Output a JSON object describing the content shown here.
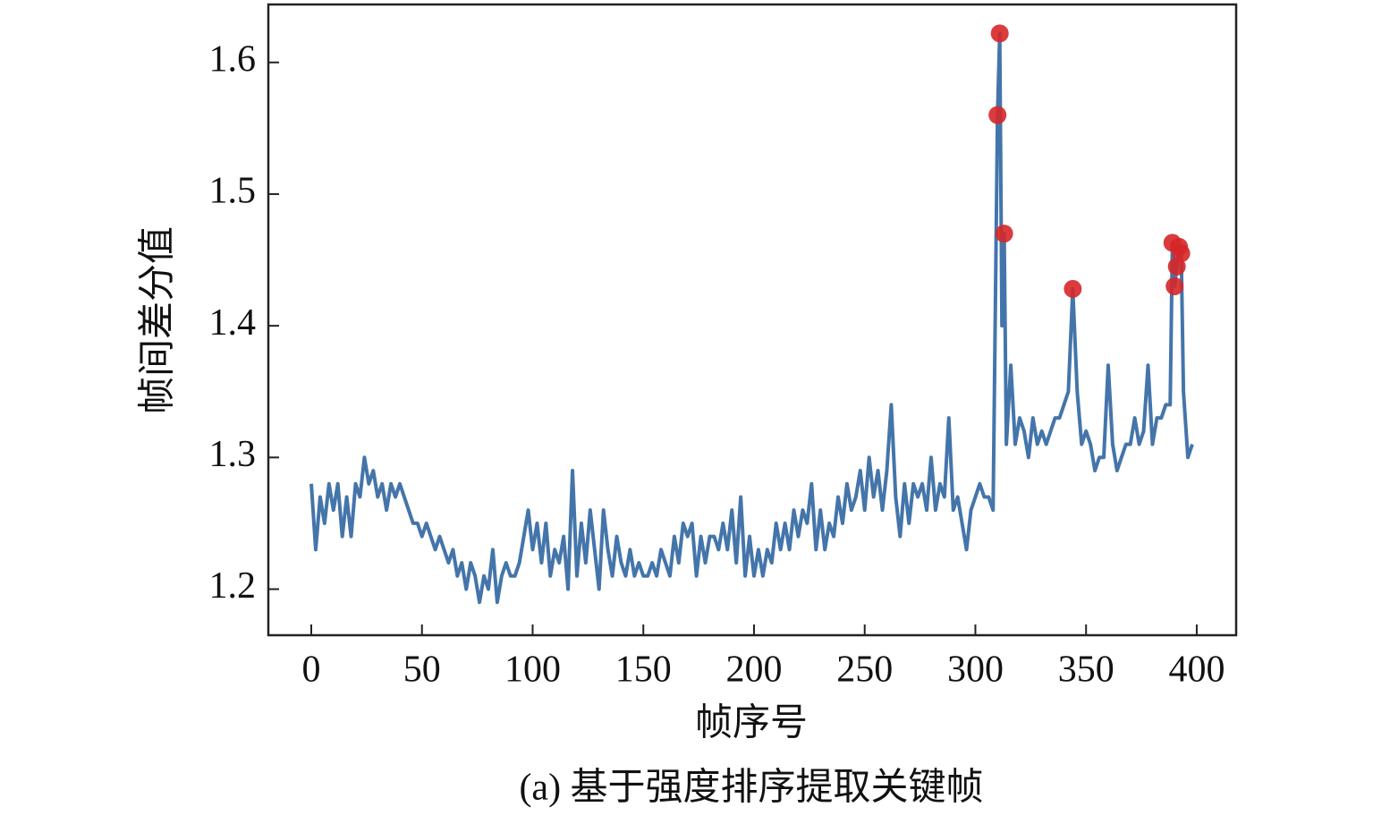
{
  "chart_data": {
    "type": "line",
    "title": "(a) 基于强度排序提取关键帧",
    "x_label": "帧序号",
    "y_label": "帧间差分值",
    "xlim": [
      -19.4,
      417.8
    ],
    "ylim": [
      1.165,
      1.644
    ],
    "xticks": [
      0,
      50,
      100,
      150,
      200,
      250,
      300,
      350,
      400
    ],
    "yticks": [
      1.2,
      1.3,
      1.4,
      1.5,
      1.6
    ],
    "grid": false,
    "series": [
      {
        "type": "line",
        "color": "#3a6ea5",
        "x": [
          0,
          2,
          4,
          6,
          8,
          10,
          12,
          14,
          16,
          18,
          20,
          22,
          24,
          26,
          28,
          30,
          32,
          34,
          36,
          38,
          40,
          42,
          44,
          46,
          48,
          50,
          52,
          54,
          56,
          58,
          60,
          62,
          64,
          66,
          68,
          70,
          72,
          74,
          76,
          78,
          80,
          82,
          84,
          86,
          88,
          90,
          92,
          94,
          96,
          98,
          100,
          102,
          104,
          106,
          108,
          110,
          112,
          114,
          116,
          118,
          120,
          122,
          124,
          126,
          128,
          130,
          132,
          134,
          136,
          138,
          140,
          142,
          144,
          146,
          148,
          150,
          152,
          154,
          156,
          158,
          160,
          162,
          164,
          166,
          168,
          170,
          172,
          174,
          176,
          178,
          180,
          182,
          184,
          186,
          188,
          190,
          192,
          194,
          196,
          198,
          200,
          202,
          204,
          206,
          208,
          210,
          212,
          214,
          216,
          218,
          220,
          222,
          224,
          226,
          228,
          230,
          232,
          234,
          236,
          238,
          240,
          242,
          244,
          246,
          248,
          250,
          252,
          254,
          256,
          258,
          260,
          262,
          264,
          266,
          268,
          270,
          272,
          274,
          276,
          278,
          280,
          282,
          284,
          286,
          288,
          290,
          292,
          294,
          296,
          298,
          300,
          302,
          304,
          306,
          308,
          310,
          311,
          312,
          313,
          314,
          316,
          318,
          320,
          322,
          324,
          326,
          328,
          330,
          332,
          334,
          336,
          338,
          340,
          342,
          344,
          346,
          348,
          350,
          352,
          354,
          356,
          358,
          360,
          362,
          364,
          366,
          368,
          370,
          372,
          374,
          376,
          378,
          380,
          382,
          384,
          386,
          388,
          389,
          390,
          391,
          392,
          393,
          394,
          396,
          398
        ],
        "values": [
          1.28,
          1.23,
          1.27,
          1.25,
          1.28,
          1.26,
          1.28,
          1.24,
          1.27,
          1.24,
          1.28,
          1.27,
          1.3,
          1.28,
          1.29,
          1.27,
          1.28,
          1.26,
          1.28,
          1.27,
          1.28,
          1.27,
          1.26,
          1.25,
          1.25,
          1.24,
          1.25,
          1.24,
          1.23,
          1.24,
          1.23,
          1.22,
          1.23,
          1.21,
          1.22,
          1.2,
          1.22,
          1.21,
          1.19,
          1.21,
          1.2,
          1.23,
          1.19,
          1.21,
          1.22,
          1.21,
          1.21,
          1.22,
          1.24,
          1.26,
          1.23,
          1.25,
          1.22,
          1.25,
          1.21,
          1.23,
          1.22,
          1.24,
          1.2,
          1.29,
          1.21,
          1.25,
          1.22,
          1.26,
          1.23,
          1.2,
          1.26,
          1.23,
          1.21,
          1.24,
          1.22,
          1.21,
          1.23,
          1.21,
          1.22,
          1.21,
          1.21,
          1.22,
          1.21,
          1.23,
          1.22,
          1.21,
          1.24,
          1.22,
          1.25,
          1.24,
          1.25,
          1.21,
          1.24,
          1.22,
          1.24,
          1.24,
          1.23,
          1.25,
          1.23,
          1.26,
          1.22,
          1.27,
          1.21,
          1.24,
          1.21,
          1.23,
          1.21,
          1.23,
          1.22,
          1.25,
          1.23,
          1.25,
          1.23,
          1.26,
          1.24,
          1.26,
          1.25,
          1.28,
          1.23,
          1.26,
          1.23,
          1.25,
          1.24,
          1.27,
          1.25,
          1.28,
          1.26,
          1.27,
          1.29,
          1.26,
          1.3,
          1.27,
          1.29,
          1.26,
          1.29,
          1.34,
          1.27,
          1.24,
          1.28,
          1.25,
          1.28,
          1.27,
          1.28,
          1.26,
          1.3,
          1.26,
          1.28,
          1.27,
          1.33,
          1.26,
          1.27,
          1.25,
          1.23,
          1.26,
          1.27,
          1.28,
          1.27,
          1.27,
          1.26,
          1.56,
          1.622,
          1.4,
          1.47,
          1.31,
          1.37,
          1.31,
          1.33,
          1.32,
          1.3,
          1.33,
          1.31,
          1.32,
          1.31,
          1.32,
          1.33,
          1.33,
          1.34,
          1.35,
          1.428,
          1.35,
          1.31,
          1.32,
          1.31,
          1.29,
          1.3,
          1.3,
          1.37,
          1.31,
          1.29,
          1.3,
          1.31,
          1.31,
          1.33,
          1.31,
          1.32,
          1.37,
          1.31,
          1.33,
          1.33,
          1.34,
          1.34,
          1.463,
          1.43,
          1.445,
          1.46,
          1.455,
          1.35,
          1.3,
          1.31
        ]
      },
      {
        "type": "scatter",
        "color": "#d62728",
        "x": [
          310,
          311,
          313,
          344,
          389,
          390,
          391,
          392,
          393
        ],
        "values": [
          1.56,
          1.622,
          1.47,
          1.428,
          1.463,
          1.43,
          1.445,
          1.46,
          1.455
        ]
      }
    ]
  }
}
